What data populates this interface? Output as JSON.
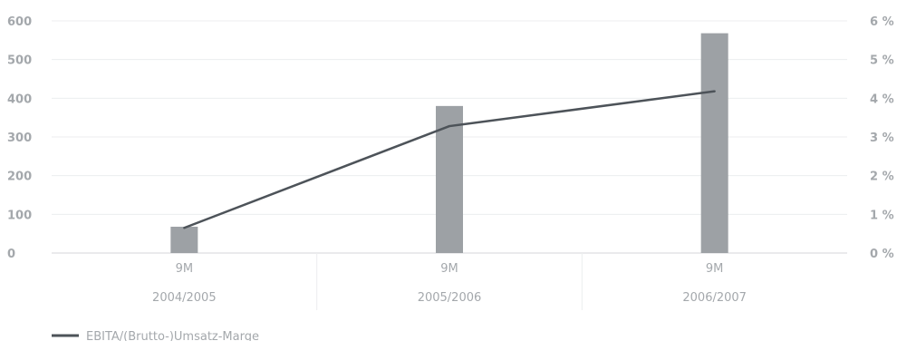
{
  "chart_data": {
    "type": "bar",
    "categories": [
      "9M",
      "9M",
      "9M"
    ],
    "periods": [
      "2004/2005",
      "2005/2006",
      "2006/2007"
    ],
    "series": [
      {
        "kind": "bar",
        "axis": "left",
        "values": [
          68,
          380,
          568
        ],
        "color": "#9da1a5"
      },
      {
        "kind": "line",
        "axis": "right",
        "name": "EBITA/(Brutto-)Umsatz-Marge",
        "values": [
          0.65,
          3.28,
          4.18
        ],
        "color": "#4d5359"
      }
    ],
    "y_left": {
      "lim": [
        0,
        600
      ],
      "ticks": [
        "0",
        "100",
        "200",
        "300",
        "400",
        "500",
        "600"
      ]
    },
    "y_right": {
      "lim": [
        0,
        6
      ],
      "ticks": [
        "0 %",
        "1 %",
        "2 %",
        "3 %",
        "4 %",
        "5 %",
        "6 %"
      ]
    },
    "grid": true,
    "legend_position": "bottom-left"
  }
}
